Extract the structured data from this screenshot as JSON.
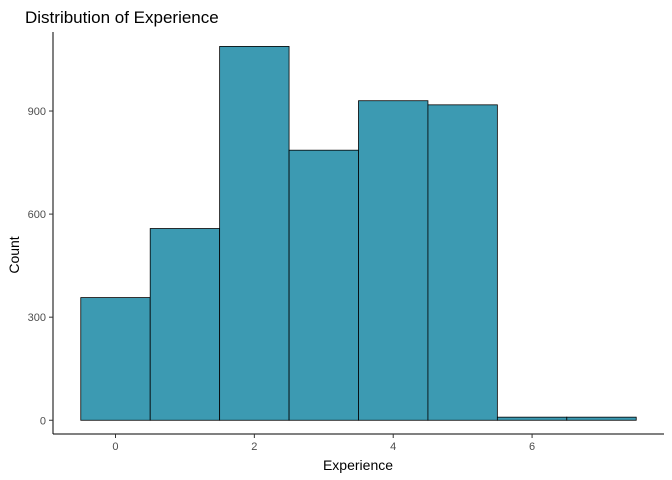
{
  "chart_data": {
    "type": "bar",
    "title": "Distribution of Experience",
    "xlabel": "Experience",
    "ylabel": "Count",
    "bins": [
      {
        "x0": -0.5,
        "x1": 0.5,
        "count": 357
      },
      {
        "x0": 0.5,
        "x1": 1.5,
        "count": 558
      },
      {
        "x0": 1.5,
        "x1": 2.5,
        "count": 1088
      },
      {
        "x0": 2.5,
        "x1": 3.5,
        "count": 786
      },
      {
        "x0": 3.5,
        "x1": 4.5,
        "count": 930
      },
      {
        "x0": 4.5,
        "x1": 5.5,
        "count": 918
      },
      {
        "x0": 5.5,
        "x1": 6.5,
        "count": 9
      },
      {
        "x0": 6.5,
        "x1": 7.5,
        "count": 9
      }
    ],
    "x_ticks": [
      0,
      2,
      4,
      6
    ],
    "y_ticks": [
      0,
      300,
      600,
      900
    ],
    "xlim": [
      -0.9,
      7.9
    ],
    "ylim": [
      -40,
      1130
    ],
    "bar_fill": "#3c9ab2",
    "bar_stroke": "#000000",
    "grid": false,
    "legend": "none"
  }
}
